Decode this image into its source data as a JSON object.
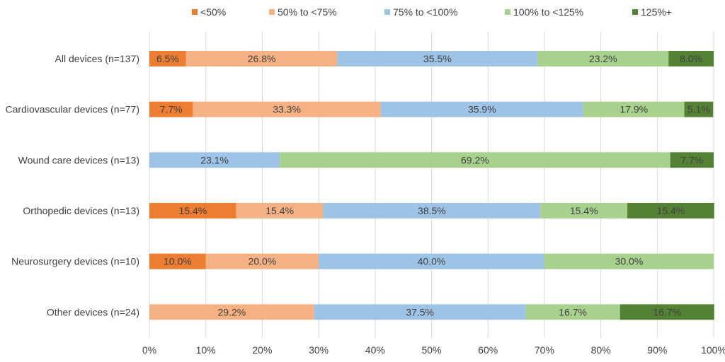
{
  "chart_data": {
    "type": "bar",
    "orientation": "horizontal",
    "stacked": true,
    "categories": [
      "All devices (n=137)",
      "Cardiovascular devices (n=77)",
      "Wound care devices (n=13)",
      "Orthopedic devices (n=13)",
      "Neurosurgery devices (n=10)",
      "Other devices (n=24)"
    ],
    "series": [
      {
        "name": "<50%",
        "color": "#ED7D31",
        "values": [
          6.5,
          7.7,
          0,
          15.4,
          10.0,
          0
        ]
      },
      {
        "name": "50% to <75%",
        "color": "#F4B183",
        "values": [
          26.8,
          33.3,
          0,
          15.4,
          20.0,
          29.2
        ]
      },
      {
        "name": "75% to <100%",
        "color": "#9DC3E6",
        "values": [
          35.5,
          35.9,
          23.1,
          38.5,
          40.0,
          37.5
        ]
      },
      {
        "name": "100% to <125%",
        "color": "#A9D18E",
        "values": [
          23.2,
          17.9,
          69.2,
          15.4,
          30.0,
          16.7
        ]
      },
      {
        "name": "125%+",
        "color": "#548235",
        "values": [
          8.0,
          5.1,
          7.7,
          15.4,
          0,
          16.7
        ]
      }
    ],
    "xlim": [
      0,
      100
    ],
    "x_ticks": [
      "0%",
      "10%",
      "20%",
      "30%",
      "40%",
      "50%",
      "60%",
      "70%",
      "80%",
      "90%",
      "100%"
    ],
    "grid": "vertical",
    "legend_position": "top",
    "value_format": "percent-1-decimal"
  }
}
